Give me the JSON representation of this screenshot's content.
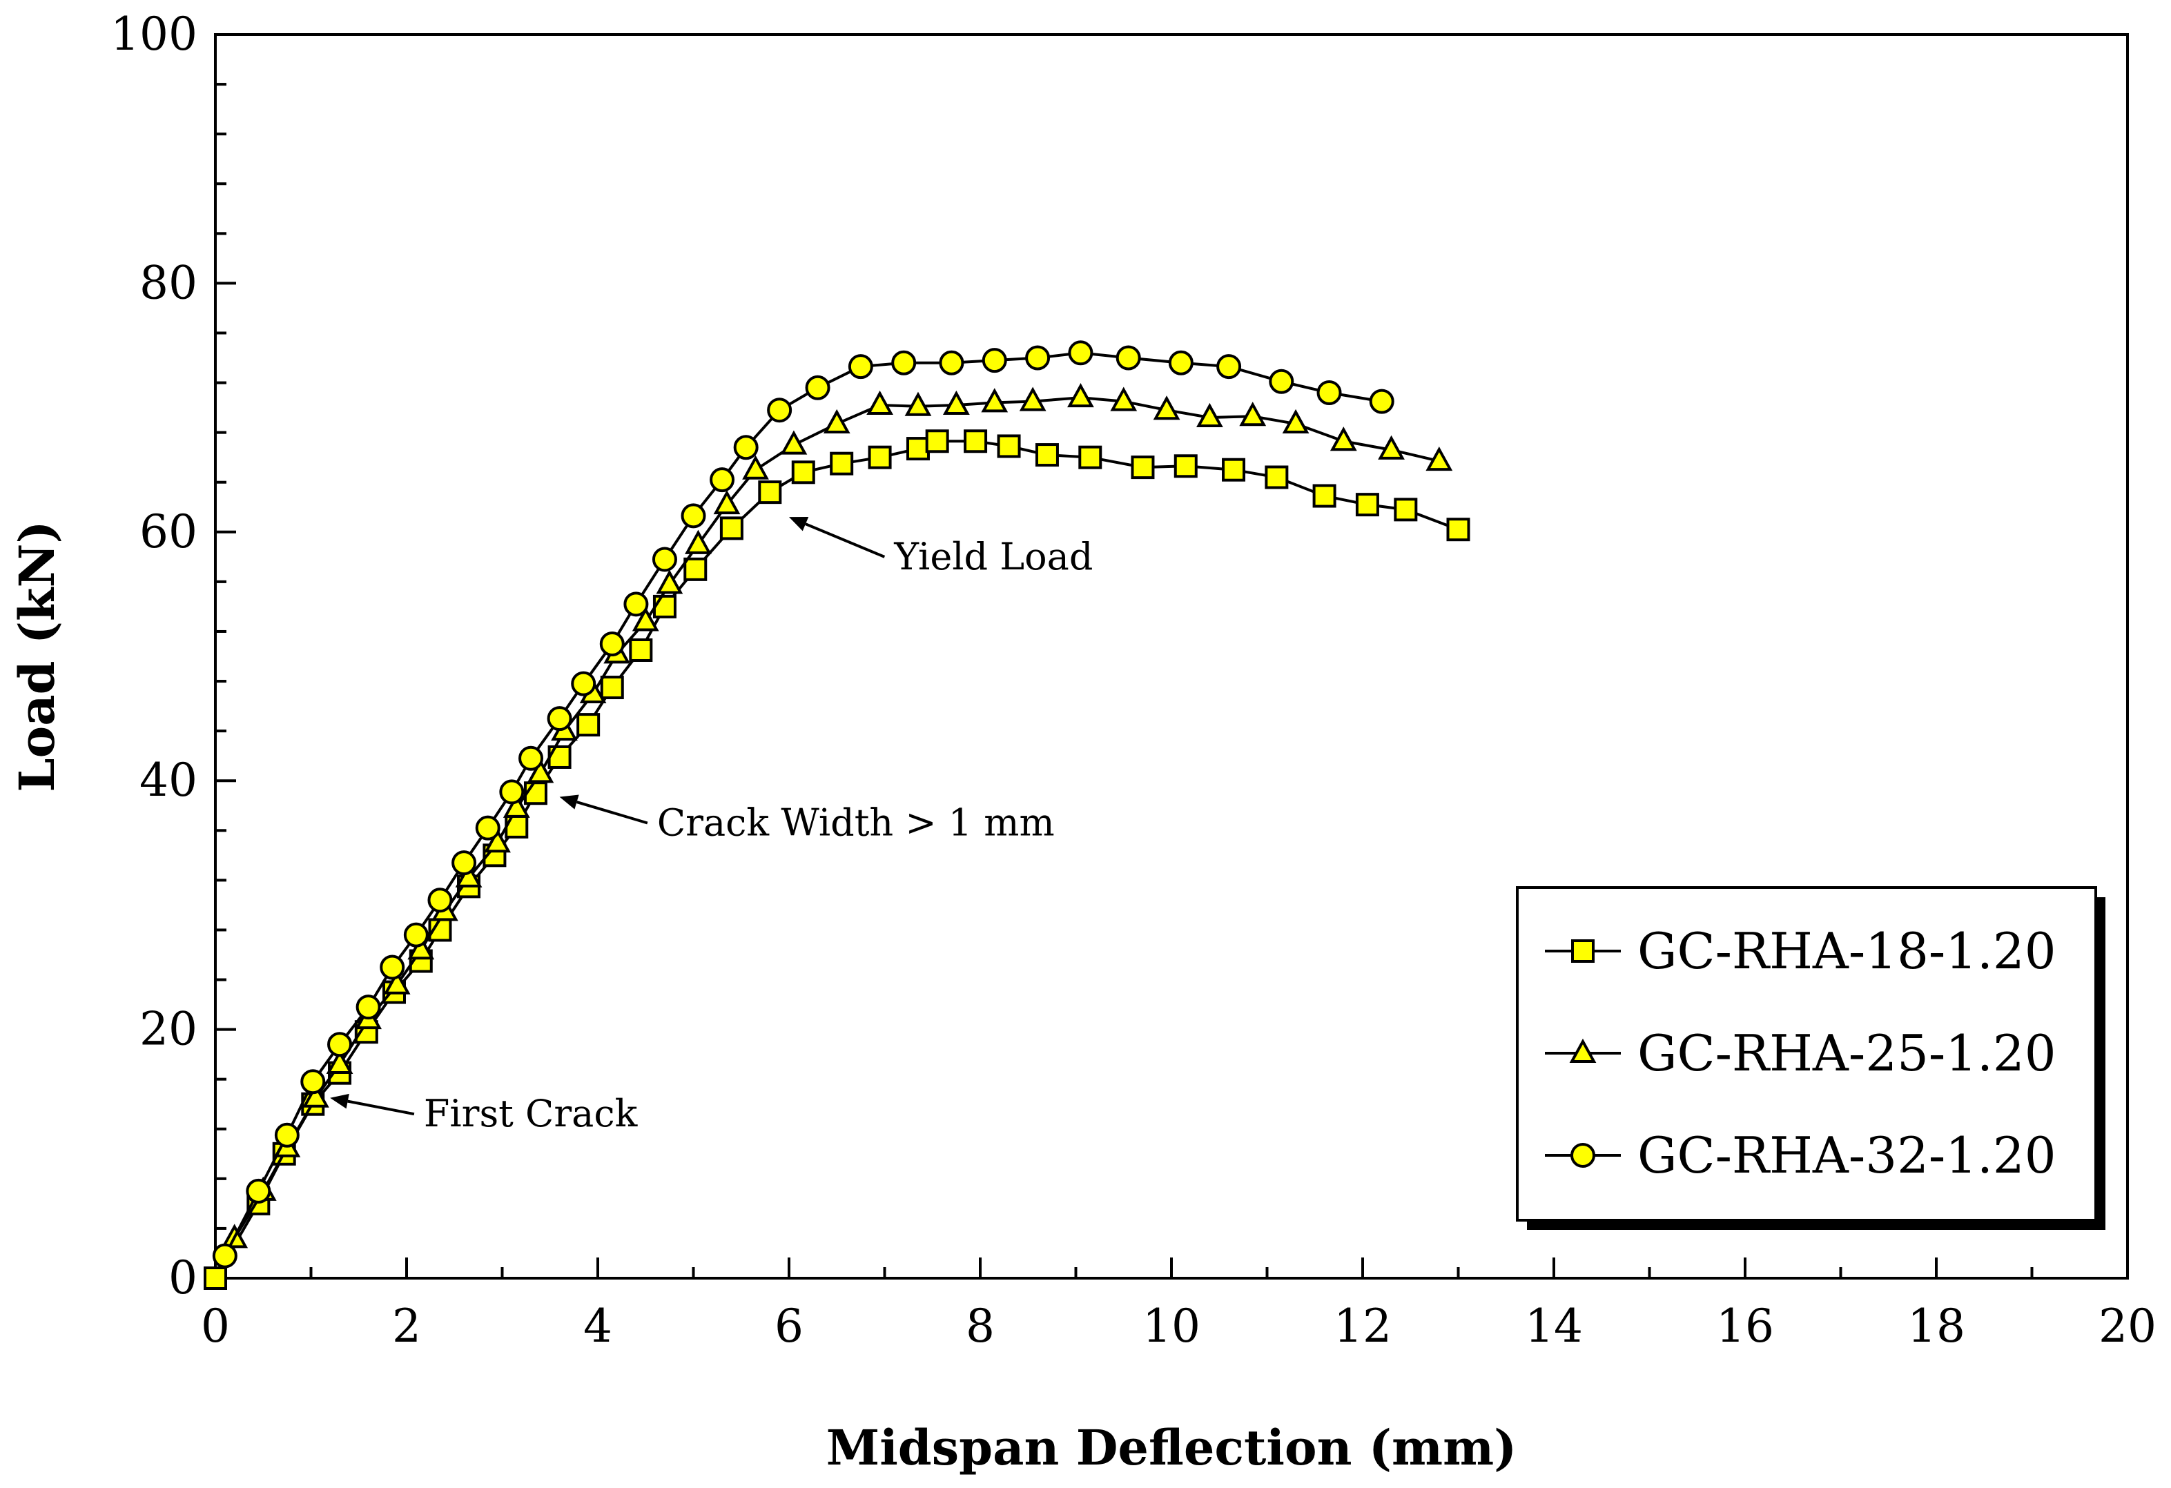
{
  "chart_data": {
    "type": "line",
    "title": "",
    "xlabel": "Midspan Deflection (mm)",
    "ylabel": "Load (kN)",
    "xlim": [
      0,
      20
    ],
    "ylim": [
      0,
      100
    ],
    "xticks": [
      "0",
      "2",
      "4",
      "6",
      "8",
      "10",
      "12",
      "14",
      "16",
      "18",
      "20"
    ],
    "yticks": [
      "0",
      "20",
      "40",
      "60",
      "80",
      "100"
    ],
    "grid": false,
    "legend_position": "bottom-right",
    "marker_fill": "#ffff00",
    "line_color": "#000000",
    "series": [
      {
        "name": "GC-RHA-18-1.20",
        "marker": "square",
        "x": [
          0,
          0.45,
          0.72,
          1.02,
          1.3,
          1.58,
          1.87,
          2.15,
          2.35,
          2.65,
          2.92,
          3.15,
          3.35,
          3.6,
          3.9,
          4.15,
          4.45,
          4.7,
          5.02,
          5.4,
          5.8,
          6.15,
          6.55,
          6.95,
          7.35,
          7.55,
          7.95,
          8.3,
          8.7,
          9.15,
          9.7,
          10.15,
          10.65,
          11.1,
          11.6,
          12.05,
          12.45,
          13.0
        ],
        "y": [
          0,
          6,
          10,
          14,
          16.5,
          19.8,
          23,
          25.5,
          28,
          31.5,
          34,
          36.3,
          39,
          41.9,
          44.5,
          47.5,
          50.5,
          54,
          57,
          60.3,
          63.2,
          64.8,
          65.5,
          66,
          66.7,
          67.3,
          67.3,
          66.9,
          66.2,
          66,
          65.2,
          65.3,
          65,
          64.4,
          62.9,
          62.2,
          61.8,
          60.2
        ]
      },
      {
        "name": "GC-RHA-25-1.20",
        "marker": "triangle",
        "x": [
          0.2,
          0.5,
          0.75,
          1.05,
          1.3,
          1.6,
          1.9,
          2.15,
          2.4,
          2.65,
          2.95,
          3.15,
          3.4,
          3.65,
          3.95,
          4.2,
          4.5,
          4.75,
          5.05,
          5.35,
          5.65,
          6.05,
          6.5,
          6.95,
          7.35,
          7.75,
          8.15,
          8.55,
          9.05,
          9.5,
          9.95,
          10.4,
          10.85,
          11.3,
          11.8,
          12.3,
          12.8
        ],
        "y": [
          3.2,
          7,
          10.5,
          14.5,
          17.2,
          20.8,
          23.6,
          26.4,
          29.5,
          32.2,
          35,
          37.8,
          40.6,
          44,
          47,
          50.2,
          52.8,
          55.8,
          59,
          62.2,
          65,
          67,
          68.7,
          70.2,
          70.1,
          70.2,
          70.4,
          70.5,
          70.8,
          70.5,
          69.8,
          69.2,
          69.3,
          68.7,
          67.3,
          66.6,
          65.7
        ]
      },
      {
        "name": "GC-RHA-32-1.20",
        "marker": "circle",
        "x": [
          0.1,
          0.45,
          0.75,
          1.02,
          1.3,
          1.6,
          1.85,
          2.1,
          2.35,
          2.6,
          2.85,
          3.1,
          3.3,
          3.6,
          3.85,
          4.15,
          4.4,
          4.7,
          5.0,
          5.3,
          5.55,
          5.9,
          6.3,
          6.75,
          7.2,
          7.7,
          8.15,
          8.6,
          9.05,
          9.55,
          10.1,
          10.6,
          11.15,
          11.65,
          12.2
        ],
        "y": [
          1.8,
          7,
          11.5,
          15.8,
          18.8,
          21.8,
          25,
          27.6,
          30.4,
          33.4,
          36.2,
          39.1,
          41.8,
          45,
          47.8,
          51,
          54.2,
          57.8,
          61.3,
          64.2,
          66.8,
          69.8,
          71.6,
          73.3,
          73.6,
          73.6,
          73.8,
          74,
          74.4,
          74,
          73.6,
          73.3,
          72.1,
          71.2,
          70.5
        ]
      }
    ],
    "annotations": [
      {
        "text": "First Crack",
        "point": [
          1.2,
          14.5
        ],
        "text_pos": [
          2.18,
          12.2
        ]
      },
      {
        "text": "Crack Width > 1 mm",
        "point": [
          3.6,
          38.7
        ],
        "text_pos": [
          4.62,
          35.6
        ]
      },
      {
        "text": "Yield Load",
        "point": [
          6.0,
          61.2
        ],
        "text_pos": [
          7.1,
          57.0
        ]
      }
    ]
  }
}
